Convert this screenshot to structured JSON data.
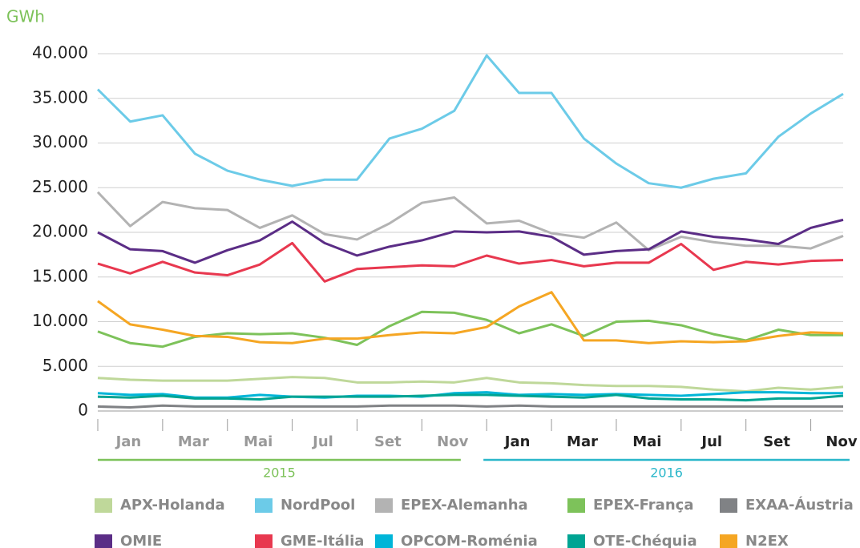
{
  "chart_data": {
    "type": "line",
    "y_label": "GWh",
    "categories": [
      "Jan",
      null,
      "Mar",
      null,
      "Mai",
      null,
      "Jul",
      null,
      "Set",
      null,
      "Nov",
      null,
      "Jan",
      null,
      "Mar",
      null,
      "Mai",
      null,
      "Jul",
      null,
      "Set",
      null,
      "Nov",
      null
    ],
    "groups": [
      {
        "label": "2015",
        "color": "#7dc25a",
        "start": 0,
        "end": 11
      },
      {
        "label": "2016",
        "color": "#2ab7ca",
        "start": 12,
        "end": 23
      }
    ],
    "ylim": [
      0,
      40000
    ],
    "yticks": [
      {
        "value": 0,
        "label": "0"
      },
      {
        "value": 5000,
        "label": "5.000"
      },
      {
        "value": 10000,
        "label": "10.000"
      },
      {
        "value": 15000,
        "label": "15.000"
      },
      {
        "value": 20000,
        "label": "20.000"
      },
      {
        "value": 25000,
        "label": "25.000"
      },
      {
        "value": 30000,
        "label": "30.000"
      },
      {
        "value": 35000,
        "label": "35.000"
      },
      {
        "value": 40000,
        "label": "40.000"
      }
    ],
    "grid": true,
    "series": [
      {
        "name": "APX-Holanda",
        "color": "#bfd89a",
        "values": [
          3700,
          3500,
          3400,
          3400,
          3400,
          3600,
          3800,
          3700,
          3200,
          3200,
          3300,
          3200,
          3700,
          3200,
          3100,
          2900,
          2800,
          2800,
          2700,
          2400,
          2200,
          2600,
          2400,
          2700
        ]
      },
      {
        "name": "NordPool",
        "color": "#6ccbe8",
        "values": [
          36000,
          32400,
          33100,
          28800,
          26900,
          25900,
          25200,
          25900,
          25900,
          30500,
          31600,
          33600,
          39800,
          35600,
          35600,
          30500,
          27700,
          25500,
          25000,
          26000,
          26600,
          30700,
          33300,
          35500
        ]
      },
      {
        "name": "EPEX-Alemanha",
        "color": "#b3b3b3",
        "values": [
          24500,
          20700,
          23400,
          22700,
          22500,
          20500,
          21900,
          19800,
          19200,
          21000,
          23300,
          23900,
          21000,
          21300,
          19900,
          19400,
          21100,
          18000,
          19500,
          18900,
          18500,
          18500,
          18200,
          19600
        ]
      },
      {
        "name": "EPEX-França",
        "color": "#7dc25a",
        "values": [
          8900,
          7600,
          7200,
          8300,
          8700,
          8600,
          8700,
          8200,
          7400,
          9500,
          11100,
          11000,
          10200,
          8700,
          9700,
          8400,
          10000,
          10100,
          9600,
          8600,
          7900,
          9100,
          8500,
          8500
        ]
      },
      {
        "name": "EXAA-Áustria",
        "color": "#808285",
        "values": [
          500,
          400,
          600,
          500,
          500,
          500,
          500,
          500,
          500,
          600,
          600,
          600,
          500,
          600,
          500,
          500,
          500,
          500,
          500,
          500,
          500,
          500,
          500,
          500
        ]
      },
      {
        "name": "OMIE",
        "color": "#5b2d86",
        "values": [
          20000,
          18100,
          17900,
          16600,
          18000,
          19100,
          21200,
          18800,
          17400,
          18400,
          19100,
          20100,
          20000,
          20100,
          19500,
          17500,
          17900,
          18100,
          20100,
          19500,
          19200,
          18700,
          20500,
          21400
        ]
      },
      {
        "name": "GME-Itália",
        "color": "#e8384f",
        "values": [
          16500,
          15400,
          16700,
          15500,
          15200,
          16400,
          18800,
          14500,
          15900,
          16100,
          16300,
          16200,
          17400,
          16500,
          16900,
          16200,
          16600,
          16600,
          18700,
          15800,
          16700,
          16400,
          16800,
          16900
        ]
      },
      {
        "name": "OPCOM-Roménia",
        "color": "#00b5d8",
        "values": [
          2000,
          1800,
          1900,
          1500,
          1500,
          1800,
          1600,
          1500,
          1700,
          1700,
          1600,
          2000,
          2100,
          1800,
          1900,
          1800,
          1900,
          1800,
          1700,
          1900,
          2100,
          2100,
          2000,
          2000
        ]
      },
      {
        "name": "OTE-Chéquia",
        "color": "#00a493",
        "values": [
          1600,
          1500,
          1700,
          1400,
          1400,
          1300,
          1600,
          1600,
          1600,
          1600,
          1700,
          1800,
          1800,
          1700,
          1600,
          1500,
          1800,
          1400,
          1300,
          1300,
          1200,
          1400,
          1400,
          1700
        ]
      },
      {
        "name": "N2EX",
        "color": "#f5a623",
        "values": [
          12300,
          9700,
          9100,
          8400,
          8300,
          7700,
          7600,
          8100,
          8100,
          8500,
          8800,
          8700,
          9400,
          11700,
          13300,
          7900,
          7900,
          7600,
          7800,
          7700,
          7800,
          8400,
          8800,
          8700
        ]
      }
    ]
  }
}
